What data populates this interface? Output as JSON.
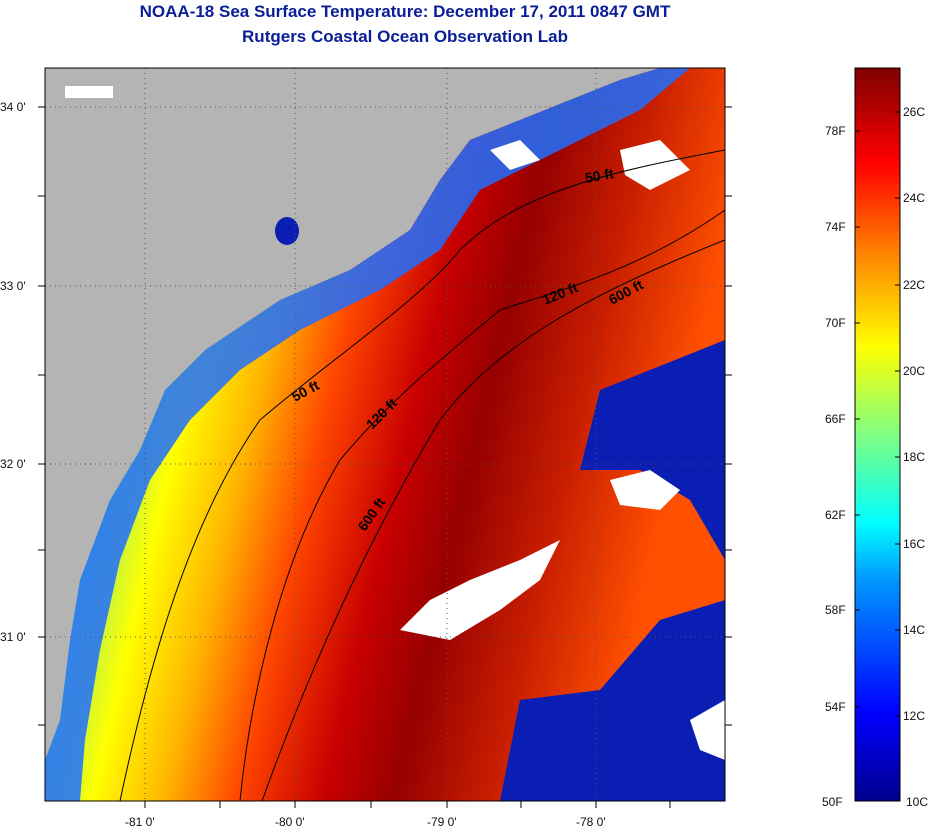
{
  "titles": {
    "line1": "NOAA-18 Sea Surface Temperature:  December 17, 2011 0847 GMT",
    "line2": "Rutgers Coastal Ocean Observation Lab"
  },
  "map": {
    "lat_ticks": [
      "34 0'",
      "33 0'",
      "32 0'",
      "31 0'"
    ],
    "lon_ticks": [
      "-81 0'",
      "-80 0'",
      "-79 0'",
      "-78 0'"
    ],
    "contour_labels": [
      "50 ft",
      "120 ft",
      "600 ft",
      "50 ft",
      "120 ft",
      "600 ft"
    ],
    "colors": {
      "land": "#b4b4b4",
      "cloud": "#ffffff",
      "cold": "#0a1eb4",
      "warm": "#8c0000"
    }
  },
  "colorbar": {
    "f_labels": [
      "78F",
      "74F",
      "70F",
      "66F",
      "62F",
      "58F",
      "54F",
      "50F"
    ],
    "c_labels": [
      "26C",
      "24C",
      "22C",
      "20C",
      "18C",
      "16C",
      "14C",
      "12C",
      "10C"
    ]
  }
}
